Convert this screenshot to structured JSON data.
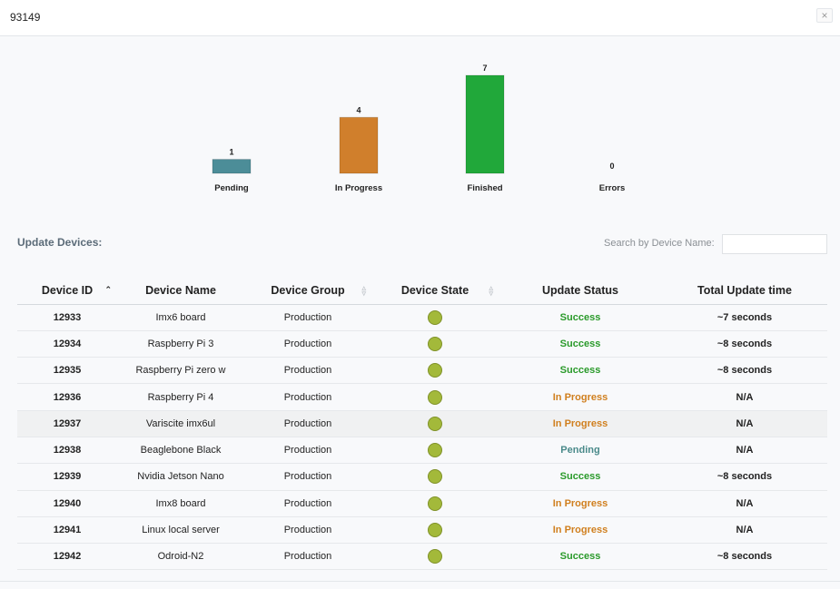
{
  "header": {
    "title": "93149",
    "close_label": "×"
  },
  "chart_data": {
    "type": "bar",
    "categories": [
      "Pending",
      "In Progress",
      "Finished",
      "Errors"
    ],
    "values": [
      1,
      4,
      7,
      0
    ],
    "colors": [
      "#4c8d98",
      "#d07f2c",
      "#21a83a",
      "#cc3333"
    ],
    "ylim": [
      0,
      7
    ]
  },
  "section": {
    "title": "Update Devices:"
  },
  "search": {
    "label": "Search by Device Name:",
    "value": "",
    "placeholder": ""
  },
  "table": {
    "columns": [
      "Device ID",
      "Device Name",
      "Device Group",
      "Device State",
      "Update Status",
      "Total Update time"
    ],
    "status_colors": {
      "Success": "#2a9a2a",
      "In Progress": "#d07f1e",
      "Pending": "#4a8a8a"
    },
    "rows": [
      {
        "id": "12933",
        "name": "Imx6 board",
        "group": "Production",
        "status": "Success",
        "time": "~7 seconds"
      },
      {
        "id": "12934",
        "name": "Raspberry Pi 3",
        "group": "Production",
        "status": "Success",
        "time": "~8 seconds"
      },
      {
        "id": "12935",
        "name": "Raspberry Pi zero w",
        "group": "Production",
        "status": "Success",
        "time": "~8 seconds"
      },
      {
        "id": "12936",
        "name": "Raspberry Pi 4",
        "group": "Production",
        "status": "In Progress",
        "time": "N/A"
      },
      {
        "id": "12937",
        "name": "Variscite imx6ul",
        "group": "Production",
        "status": "In Progress",
        "time": "N/A"
      },
      {
        "id": "12938",
        "name": "Beaglebone Black",
        "group": "Production",
        "status": "Pending",
        "time": "N/A"
      },
      {
        "id": "12939",
        "name": "Nvidia Jetson Nano",
        "group": "Production",
        "status": "Success",
        "time": "~8 seconds"
      },
      {
        "id": "12940",
        "name": "Imx8 board",
        "group": "Production",
        "status": "In Progress",
        "time": "N/A"
      },
      {
        "id": "12941",
        "name": "Linux local server",
        "group": "Production",
        "status": "In Progress",
        "time": "N/A"
      },
      {
        "id": "12942",
        "name": "Odroid-N2",
        "group": "Production",
        "status": "Success",
        "time": "~8 seconds"
      }
    ]
  }
}
